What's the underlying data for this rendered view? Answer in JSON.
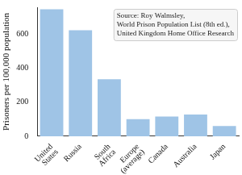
{
  "chart_data": {
    "type": "bar",
    "y_label": "Prisoners per 100,000 population",
    "categories": [
      "United States",
      "Russia",
      "South Africa",
      "Europe (average)",
      "Canada",
      "Australia",
      "Japan"
    ],
    "values": [
      748,
      624,
      336,
      100,
      116,
      128,
      60
    ],
    "color": "#9fc4e6",
    "ylim": [
      0,
      760
    ],
    "yticks": [
      0,
      200,
      400,
      600
    ],
    "grid": false,
    "annotation": [
      "Source: Roy Walmsley,",
      "World Prison Population List (8th ed.),",
      "United Kingdom Home Office Research"
    ]
  }
}
